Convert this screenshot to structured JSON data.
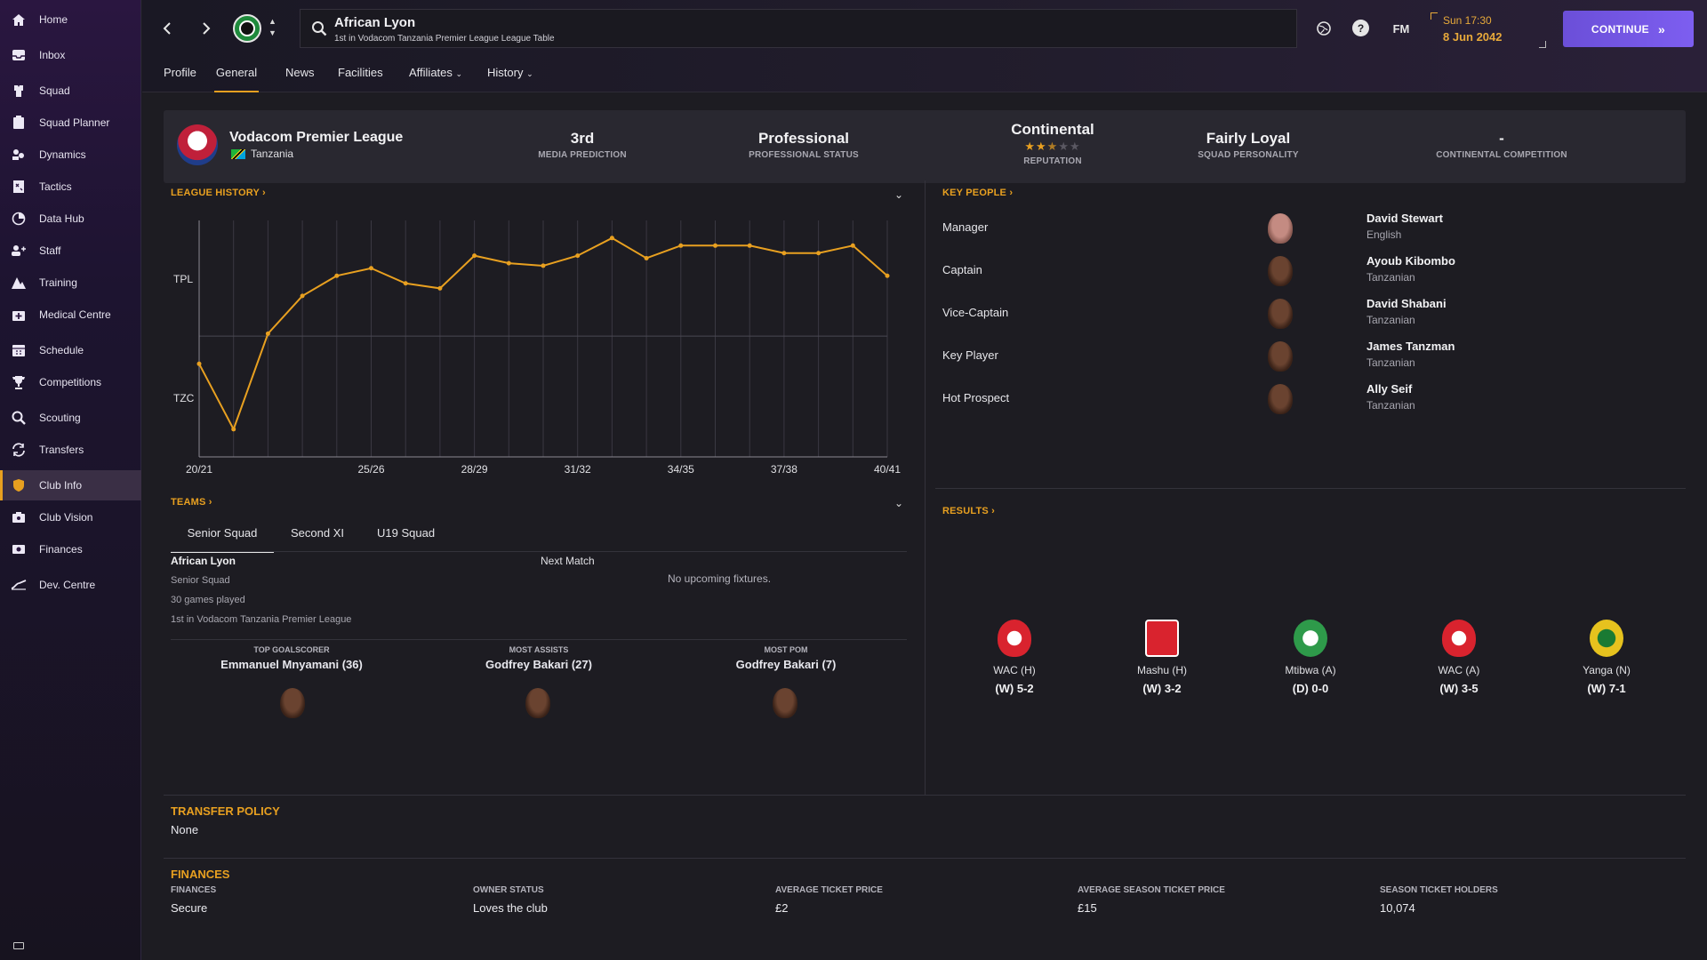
{
  "sidebar": {
    "items": [
      {
        "label": "Home",
        "icon": "home-icon"
      },
      {
        "label": "Inbox",
        "icon": "inbox-icon"
      },
      {
        "label": "Squad",
        "icon": "squad-icon"
      },
      {
        "label": "Squad Planner",
        "icon": "clipboard-icon"
      },
      {
        "label": "Dynamics",
        "icon": "dynamics-icon"
      },
      {
        "label": "Tactics",
        "icon": "tactics-icon"
      },
      {
        "label": "Data Hub",
        "icon": "data-hub-icon"
      },
      {
        "label": "Staff",
        "icon": "staff-icon"
      },
      {
        "label": "Training",
        "icon": "training-icon"
      },
      {
        "label": "Medical Centre",
        "icon": "medical-icon"
      },
      {
        "label": "Schedule",
        "icon": "calendar-icon"
      },
      {
        "label": "Competitions",
        "icon": "trophy-icon"
      },
      {
        "label": "Scouting",
        "icon": "scouting-icon"
      },
      {
        "label": "Transfers",
        "icon": "transfers-icon"
      },
      {
        "label": "Club Info",
        "icon": "shield-icon"
      },
      {
        "label": "Club Vision",
        "icon": "vision-icon"
      },
      {
        "label": "Finances",
        "icon": "finances-icon"
      },
      {
        "label": "Dev. Centre",
        "icon": "dev-centre-icon"
      }
    ],
    "active": "Club Info"
  },
  "header": {
    "club_name": "African Lyon",
    "subtitle": "1st in Vodacom Tanzania Premier League League Table",
    "fm_label": "FM",
    "date_time": "Sun 17:30",
    "date": "8 Jun 2042",
    "continue_label": "CONTINUE"
  },
  "tabs": [
    "Profile",
    "General",
    "News",
    "Facilities",
    "Affiliates",
    "History"
  ],
  "active_tab": "General",
  "infobar": {
    "league_name": "Vodacom Premier League",
    "country": "Tanzania",
    "stats": [
      {
        "value": "3rd",
        "label": "MEDIA PREDICTION"
      },
      {
        "value": "Professional",
        "label": "PROFESSIONAL STATUS"
      },
      {
        "value": "Continental",
        "label": "REPUTATION",
        "stars": 2.5
      },
      {
        "value": "Fairly Loyal",
        "label": "SQUAD PERSONALITY"
      },
      {
        "value": "-",
        "label": "CONTINENTAL COMPETITION"
      }
    ]
  },
  "league_history": {
    "title": "LEAGUE HISTORY",
    "y_labels": [
      "TPL",
      "TZC"
    ],
    "x_labels": [
      "20/21",
      "25/26",
      "28/29",
      "31/32",
      "34/35",
      "37/38",
      "40/41"
    ]
  },
  "chart_data": {
    "type": "line",
    "title": "LEAGUE HISTORY",
    "x": [
      "20/21",
      "21/22",
      "22/23",
      "23/24",
      "24/25",
      "25/26",
      "26/27",
      "27/28",
      "28/29",
      "29/30",
      "30/31",
      "31/32",
      "32/33",
      "33/34",
      "34/35",
      "35/36",
      "36/37",
      "37/38",
      "38/39",
      "39/40",
      "40/41"
    ],
    "series": [
      {
        "values": [
          1.55,
          2.85,
          0.95,
          0.2,
          -0.2,
          -0.35,
          -0.05,
          0.05,
          -0.6,
          -0.45,
          -0.4,
          -0.6,
          -0.95,
          -0.55,
          -0.8,
          -0.8,
          -0.8,
          -0.65,
          -0.65,
          -0.8,
          -0.2
        ]
      }
    ],
    "y_categories": [
      "TPL",
      "TZC"
    ],
    "line_color": "#e8a020",
    "grid": true
  },
  "teams": {
    "title": "TEAMS",
    "tabs": [
      "Senior Squad",
      "Second XI",
      "U19 Squad"
    ],
    "active": "Senior Squad",
    "team_name": "African Lyon",
    "team_type": "Senior Squad",
    "games_played": "30 games played",
    "position": "1st in Vodacom Tanzania Premier League",
    "next_match_label": "Next Match",
    "no_fixtures": "No upcoming fixtures.",
    "top_stats": [
      {
        "label": "TOP GOALSCORER",
        "value": "Emmanuel Mnyamani (36)"
      },
      {
        "label": "MOST ASSISTS",
        "value": "Godfrey Bakari (27)"
      },
      {
        "label": "MOST POM",
        "value": "Godfrey Bakari (7)"
      }
    ]
  },
  "key_people": {
    "title": "KEY PEOPLE",
    "people": [
      {
        "role": "Manager",
        "name": "David Stewart",
        "nationality": "English"
      },
      {
        "role": "Captain",
        "name": "Ayoub Kibombo",
        "nationality": "Tanzanian"
      },
      {
        "role": "Vice-Captain",
        "name": "David Shabani",
        "nationality": "Tanzanian"
      },
      {
        "role": "Key Player",
        "name": "James Tanzman",
        "nationality": "Tanzanian"
      },
      {
        "role": "Hot Prospect",
        "name": "Ally Seif",
        "nationality": "Tanzanian"
      }
    ]
  },
  "results": {
    "title": "RESULTS",
    "items": [
      {
        "team": "WAC (H)",
        "score": "(W) 5-2",
        "color": "#d9232e"
      },
      {
        "team": "Mashu (H)",
        "score": "(W) 3-2",
        "color": "#d9232e"
      },
      {
        "team": "Mtibwa (A)",
        "score": "(D) 0-0",
        "color": "#2e9a4a"
      },
      {
        "team": "WAC (A)",
        "score": "(W) 3-5",
        "color": "#d9232e"
      },
      {
        "team": "Yanga (N)",
        "score": "(W) 7-1",
        "color": "#e6c21e"
      }
    ]
  },
  "transfer_policy": {
    "title": "TRANSFER POLICY",
    "value": "None"
  },
  "finances": {
    "title": "FINANCES",
    "items": [
      {
        "label": "FINANCES",
        "value": "Secure"
      },
      {
        "label": "OWNER STATUS",
        "value": "Loves the club"
      },
      {
        "label": "AVERAGE TICKET PRICE",
        "value": "£2"
      },
      {
        "label": "AVERAGE SEASON TICKET PRICE",
        "value": "£15"
      },
      {
        "label": "SEASON TICKET HOLDERS",
        "value": "10,074"
      }
    ]
  },
  "colors": {
    "accent": "#e8a020",
    "continue": "#7d5ef0"
  }
}
